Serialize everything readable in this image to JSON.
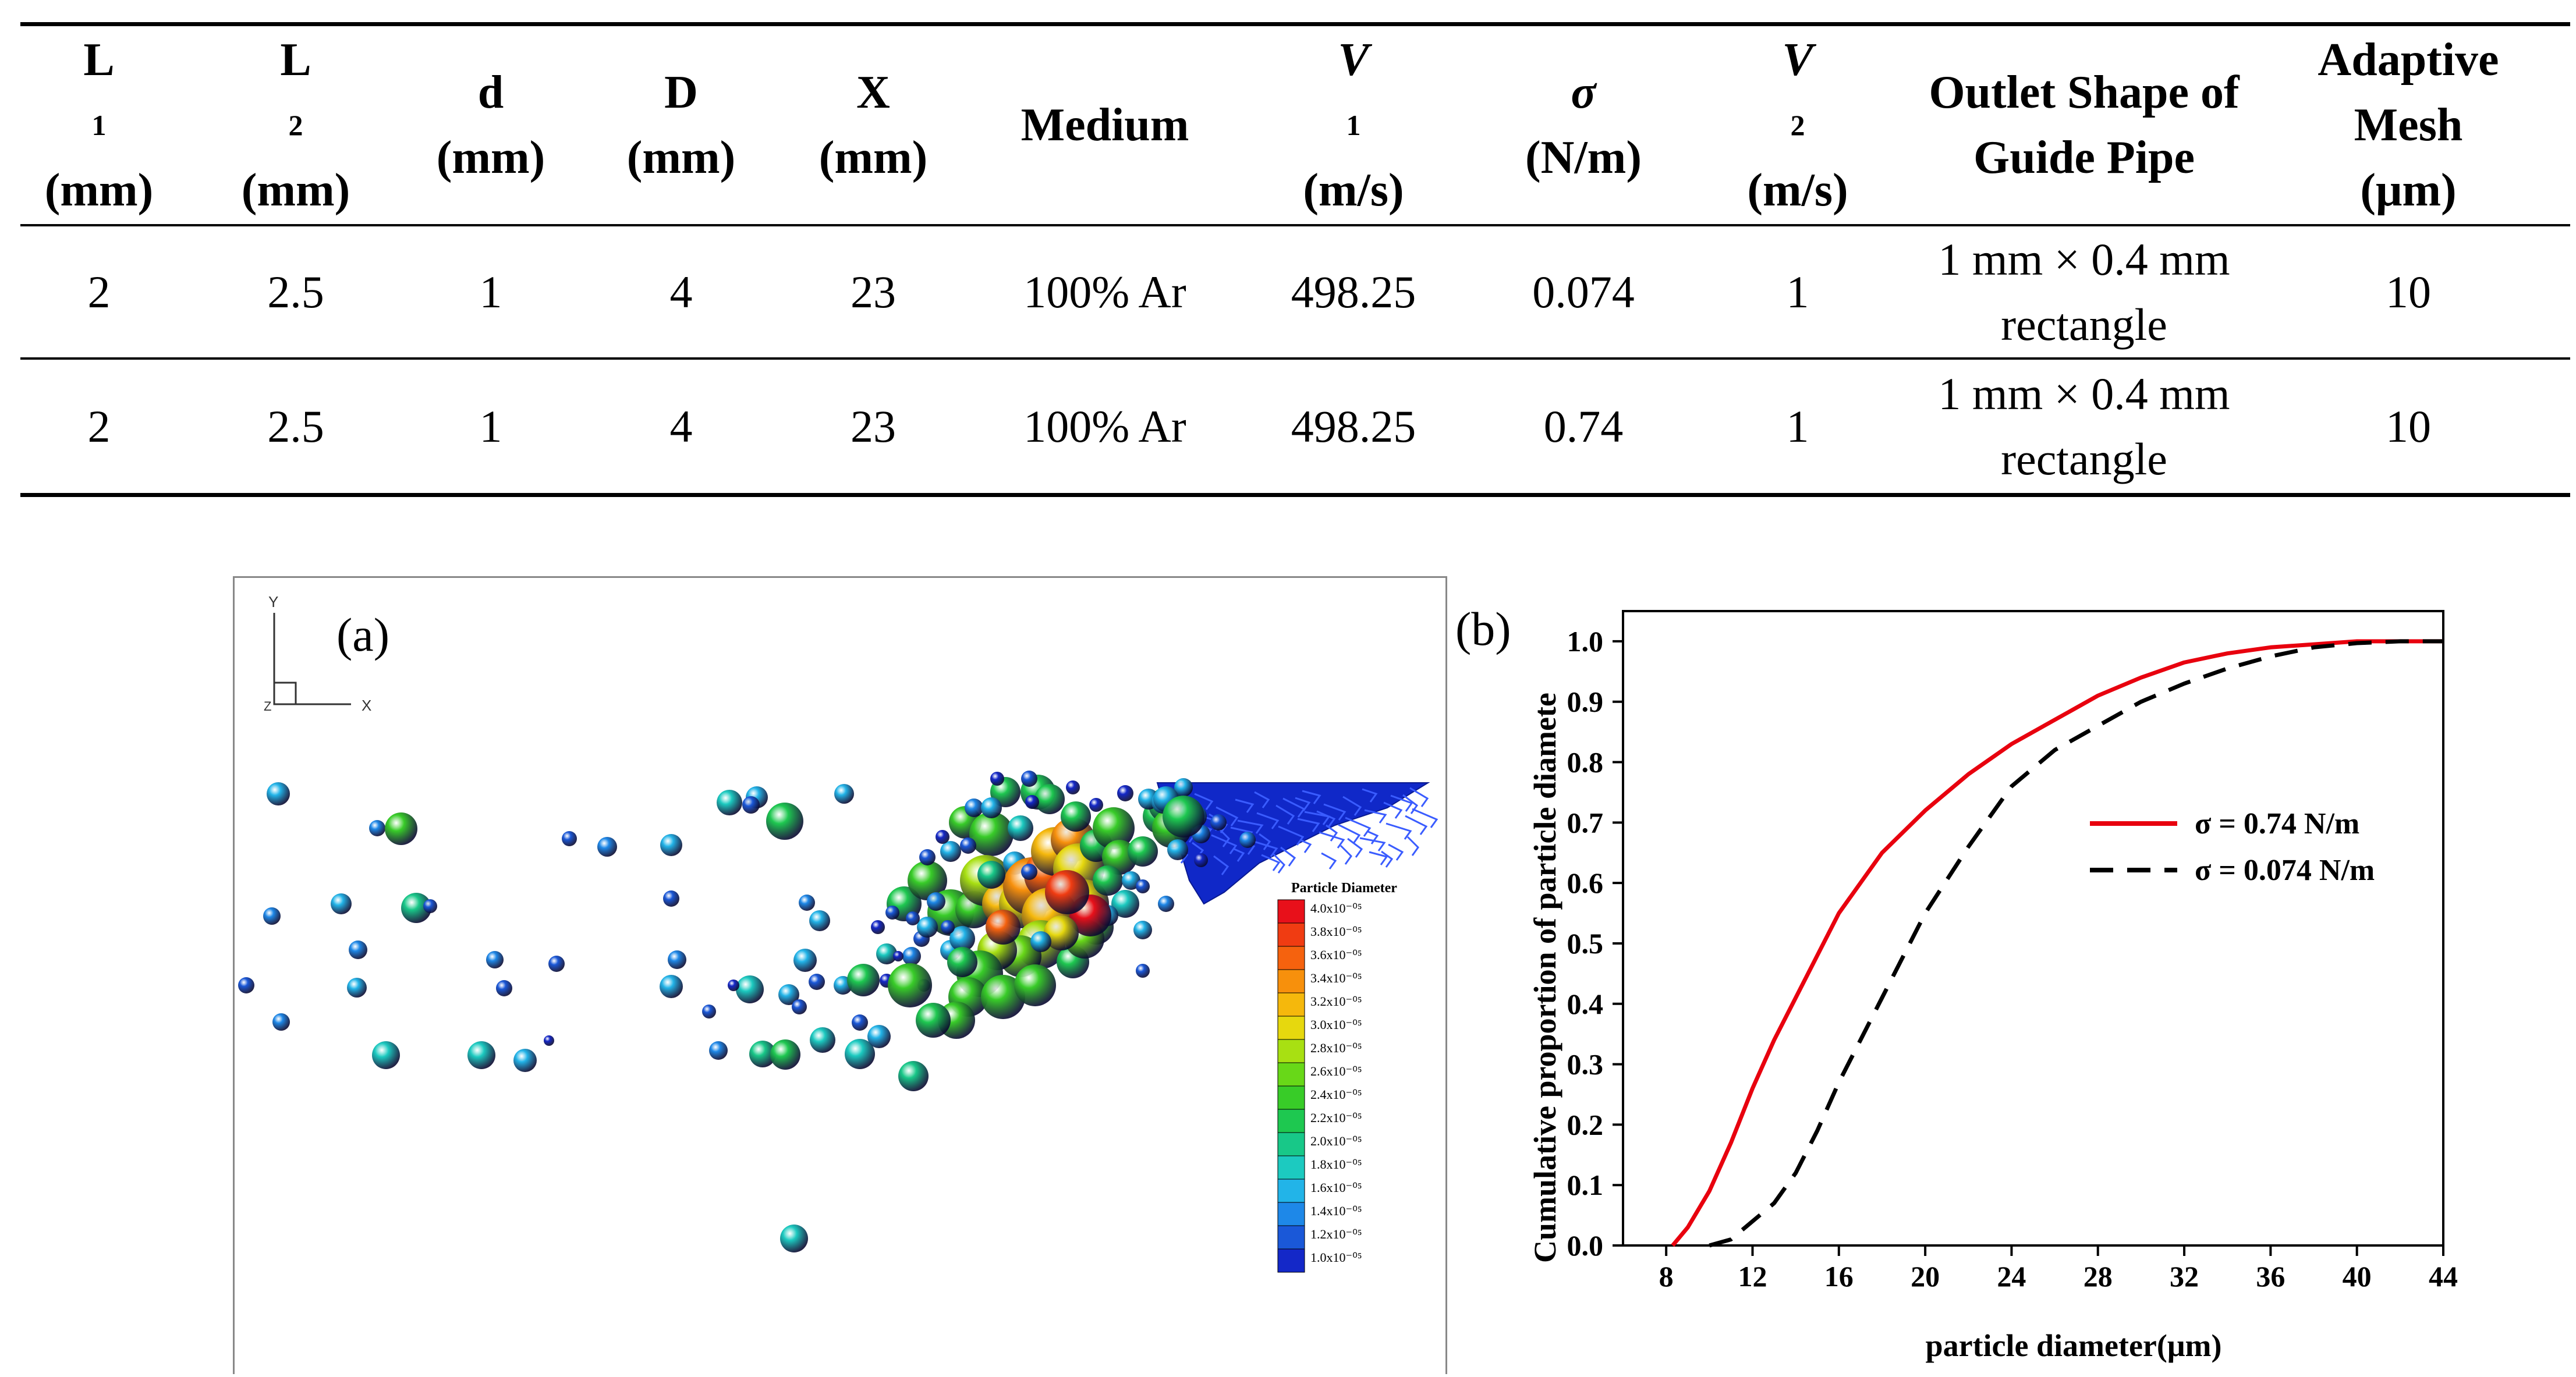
{
  "table": {
    "headers": [
      {
        "main": "L",
        "sub": "1",
        "unit": "(mm)"
      },
      {
        "main": "L",
        "sub": "2",
        "unit": "(mm)"
      },
      {
        "main": "d",
        "sub": "",
        "unit": "(mm)"
      },
      {
        "main": "D",
        "sub": "",
        "unit": "(mm)"
      },
      {
        "main": "X",
        "sub": "",
        "unit": "(mm)"
      },
      {
        "main": "Medium",
        "sub": "",
        "unit": ""
      },
      {
        "main": "V",
        "sub": "1",
        "unit": "(m/s)"
      },
      {
        "main": "σ",
        "sub": "",
        "unit": "(N/m)"
      },
      {
        "main": "V",
        "sub": "2",
        "unit": "(m/s)"
      },
      {
        "main": "Outlet Shape of",
        "sub": "",
        "unit": "Guide Pipe"
      },
      {
        "main": "Adaptive",
        "sub": "",
        "unit": "Mesh",
        "unit2": "(μm)"
      }
    ],
    "rows": [
      [
        "2",
        "2.5",
        "1",
        "4",
        "23",
        "100% Ar",
        "498.25",
        "0.074",
        "1",
        "1 mm × 0.4 mm",
        "10"
      ],
      [
        "2",
        "2.5",
        "1",
        "4",
        "23",
        "100% Ar",
        "498.25",
        "0.74",
        "1",
        "1 mm × 0.4 mm",
        "10"
      ]
    ],
    "shape_second_line": "rectangle"
  },
  "panel_a": {
    "label": "(a)",
    "axis_y": "Y",
    "axis_x": "X",
    "axis_z": "Z",
    "legend_title": "Particle Diameter",
    "legend_labels": [
      "4.0x10⁻⁰⁵",
      "3.8x10⁻⁰⁵",
      "3.6x10⁻⁰⁵",
      "3.4x10⁻⁰⁵",
      "3.2x10⁻⁰⁵",
      "3.0x10⁻⁰⁵",
      "2.8x10⁻⁰⁵",
      "2.6x10⁻⁰⁵",
      "2.4x10⁻⁰⁵",
      "2.2x10⁻⁰⁵",
      "2.0x10⁻⁰⁵",
      "1.8x10⁻⁰⁵",
      "1.6x10⁻⁰⁵",
      "1.4x10⁻⁰⁵",
      "1.2x10⁻⁰⁵",
      "1.0x10⁻⁰⁵"
    ],
    "legend_colors": [
      "#e8101a",
      "#f03c12",
      "#f5620e",
      "#f7900c",
      "#f5b80c",
      "#e6d80e",
      "#a8e012",
      "#68d818",
      "#38cc28",
      "#1ec850",
      "#18c888",
      "#1ccac0",
      "#22b4e8",
      "#1e88e8",
      "#1a58d8",
      "#1428c8"
    ]
  },
  "chart_data": {
    "type": "line",
    "label": "(b)",
    "xlabel": "particle diameter(μm)",
    "ylabel": "Cumulative proportion of particle diamete",
    "xlim": [
      6,
      44
    ],
    "ylim": [
      0,
      1.05
    ],
    "xticks": [
      8,
      12,
      16,
      20,
      24,
      28,
      32,
      36,
      40,
      44
    ],
    "yticks": [
      0.0,
      0.1,
      0.2,
      0.3,
      0.4,
      0.5,
      0.6,
      0.7,
      0.8,
      0.9,
      1.0
    ],
    "series": [
      {
        "name": "σ = 0.74 N/m",
        "color": "#e8000e",
        "style": "solid",
        "x": [
          8.3,
          9,
          10,
          11,
          12,
          13,
          14,
          15,
          16,
          17,
          18,
          20,
          22,
          24,
          26,
          28,
          30,
          32,
          34,
          36,
          38,
          40,
          42,
          44
        ],
        "y": [
          0.0,
          0.03,
          0.09,
          0.17,
          0.26,
          0.34,
          0.41,
          0.48,
          0.55,
          0.6,
          0.65,
          0.72,
          0.78,
          0.83,
          0.87,
          0.91,
          0.94,
          0.965,
          0.98,
          0.99,
          0.995,
          1.0,
          1.0,
          1.0
        ]
      },
      {
        "name": "σ = 0.074 N/m",
        "color": "#000000",
        "style": "dashed",
        "x": [
          10,
          11,
          12,
          13,
          14,
          15,
          16,
          17,
          18,
          19,
          20,
          22,
          24,
          26,
          28,
          30,
          32,
          34,
          36,
          38,
          40,
          42,
          44
        ],
        "y": [
          0.0,
          0.01,
          0.04,
          0.07,
          0.12,
          0.19,
          0.27,
          0.34,
          0.41,
          0.48,
          0.55,
          0.66,
          0.76,
          0.82,
          0.86,
          0.9,
          0.93,
          0.955,
          0.975,
          0.99,
          0.997,
          1.0,
          1.0
        ]
      }
    ]
  }
}
